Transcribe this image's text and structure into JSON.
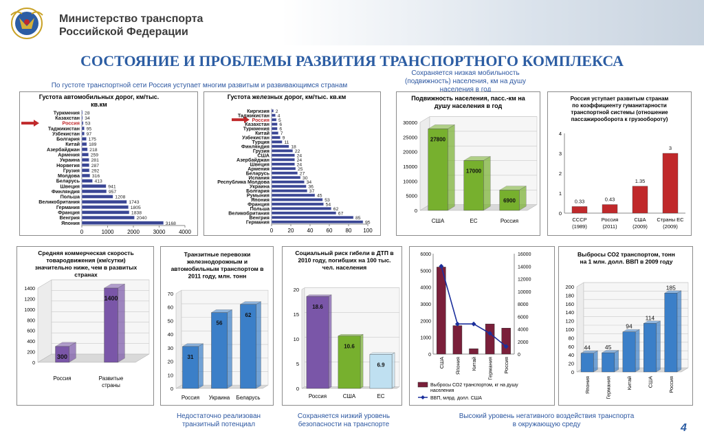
{
  "header": {
    "ministry_line1": "Министерство транспорта",
    "ministry_line2": "Российской Федерации",
    "title": "СОСТОЯНИЕ И ПРОБЛЕМЫ РАЗВИТИЯ ТРАНСПОРТНОГО КОМПЛЕКСА"
  },
  "notes": {
    "density": "По густоте транспортной сети Россия уступает многим развитым и развивающимся странам",
    "mobility": [
      "Сохраняется низкая мобильность",
      "(подвижность) населения, км на душу",
      "населения в год"
    ],
    "transit": [
      "Недостаточно реализован",
      "транзитный потенциал"
    ],
    "safety": [
      "Сохраняется низкий уровень",
      "безопасности на транспорте"
    ],
    "environment": [
      "Высокий уровень негативного воздействия транспорта",
      "в окружающую среду"
    ]
  },
  "page_number": "4",
  "colors": {
    "accent_blue": "#2c5da3",
    "bar_navy": "#3a4694",
    "bar_green": "#77b02e",
    "bar_red": "#c0292b",
    "bar_purple": "#7a56a8",
    "bar_blue": "#3b7fc8",
    "bar_maroon": "#7a1f3a",
    "bar_lightblue": "#bfe0f1"
  },
  "chart_data": [
    {
      "id": "roads",
      "type": "bar",
      "orientation": "horizontal",
      "title": "Густота автомобильных дорог, км/тыс. кв.км",
      "categories": [
        "Туркмения",
        "Казахстан",
        "Россия",
        "Таджикистан",
        "Узбекистан",
        "Болгария",
        "Китай",
        "Азербайджан",
        "Армения",
        "Украина",
        "Норвегия",
        "Грузия",
        "Молдова",
        "Беларусь",
        "Швеция",
        "Финляндия",
        "Польша",
        "Великобритания",
        "Германия",
        "Франция",
        "Венгрия",
        "Япония"
      ],
      "values": [
        28,
        34,
        53,
        95,
        97,
        175,
        189,
        218,
        259,
        281,
        287,
        292,
        316,
        413,
        941,
        957,
        1208,
        1743,
        1805,
        1838,
        2040,
        3168
      ],
      "highlight": "Россия",
      "xlim": [
        0,
        4000
      ],
      "xticks": [
        0,
        1000,
        2000,
        3000,
        4000
      ]
    },
    {
      "id": "rail",
      "type": "bar",
      "orientation": "horizontal",
      "title": "Густота железных дорог, км/тыс. кв.км",
      "categories": [
        "Киргизия",
        "Таджикистан",
        "Россия",
        "Казахстан",
        "Туркмения",
        "Китай",
        "Узбекистан",
        "Турция",
        "Финляндия",
        "Грузия",
        "США",
        "Азербайджан",
        "Швеция",
        "Армения",
        "Беларусь",
        "Испания",
        "Республика Молдова",
        "Украина",
        "Болгария",
        "Румыния",
        "Япония",
        "Франция",
        "Польша",
        "Великобритания",
        "Венгрия",
        "Германия"
      ],
      "values": [
        2,
        4,
        5,
        6,
        6,
        7,
        9,
        11,
        18,
        22,
        24,
        24,
        24,
        25,
        27,
        30,
        34,
        36,
        37,
        45,
        53,
        54,
        62,
        67,
        85,
        95
      ],
      "highlight": "Россия",
      "xlim": [
        0,
        100
      ],
      "xticks": [
        0,
        20,
        40,
        60,
        80,
        100
      ]
    },
    {
      "id": "mobility",
      "type": "bar",
      "title": "Подвижность населения, пасс.-км на душу населения в год",
      "categories": [
        "США",
        "ЕС",
        "Россия"
      ],
      "values": [
        27800,
        17000,
        6900
      ],
      "ylim": [
        0,
        30000
      ],
      "yticks": [
        0,
        5000,
        10000,
        15000,
        20000,
        25000,
        30000
      ]
    },
    {
      "id": "humanitarian",
      "type": "bar",
      "title": "Россия уступает развитым странам по коэффициенту гуманитарности транспортной системы (отношение пассажирооборота к грузообороту)",
      "categories": [
        "СССР (1989)",
        "Россия (2011)",
        "США (2009)",
        "Страны ЕС (2009)"
      ],
      "category_lines": [
        [
          "СССР",
          "(1989)"
        ],
        [
          "Россия",
          "(2011)"
        ],
        [
          "США",
          "(2009)"
        ],
        [
          "Страны ЕС",
          "(2009)"
        ]
      ],
      "values": [
        0.33,
        0.43,
        1.35,
        3
      ],
      "value_labels": [
        "0.33",
        "0.43",
        "1.35",
        "3"
      ],
      "ylim": [
        0,
        4
      ],
      "yticks": [
        0,
        1,
        2,
        3,
        4
      ]
    },
    {
      "id": "speed",
      "type": "bar",
      "title": "Средняя коммерческая скорость товародвижения (км/сутки) значительно ниже, чем в развитых странах",
      "categories": [
        "Россия",
        "Развитые страны"
      ],
      "category_lines": [
        [
          "Россия"
        ],
        [
          "Развитые",
          "страны"
        ]
      ],
      "values": [
        300,
        1400
      ],
      "ylim": [
        0,
        1400
      ],
      "yticks": [
        0,
        200,
        400,
        600,
        800,
        1000,
        1200,
        1400
      ]
    },
    {
      "id": "transit",
      "type": "bar",
      "title": "Транзитные перевозки железнодорожным и автомобильным транспортом в 2011 году, млн. тонн",
      "categories": [
        "Россия",
        "Украина",
        "Беларусь"
      ],
      "values": [
        31,
        56,
        62
      ],
      "ylim": [
        0,
        70
      ],
      "yticks": [
        0,
        10,
        20,
        30,
        40,
        50,
        60,
        70
      ]
    },
    {
      "id": "risk",
      "type": "bar",
      "title": "Социальный риск гибели в ДТП в 2010 году, погибших на 100 тыс. чел. населения",
      "categories": [
        "Россия",
        "США",
        "ЕС"
      ],
      "values": [
        18.6,
        10.6,
        6.9
      ],
      "ylim": [
        0,
        20
      ],
      "yticks": [
        0,
        5,
        10,
        15,
        20
      ]
    },
    {
      "id": "co2_gdp",
      "type": "bar+line",
      "categories": [
        "США",
        "Япония",
        "Китай",
        "Германия",
        "Россия"
      ],
      "series": [
        {
          "name": "Выбросы СО2 транспортом, кг на душу населения",
          "type": "bar",
          "axis": "left",
          "values": [
            5200,
            1700,
            320,
            1800,
            1550
          ]
        },
        {
          "name": "ВВП, млрд. долл. США",
          "type": "line",
          "axis": "right",
          "values": [
            14000,
            4800,
            4800,
            3300,
            1200
          ]
        }
      ],
      "ylim_left": [
        0,
        6000
      ],
      "yticks_left": [
        0,
        1000,
        2000,
        3000,
        4000,
        5000,
        6000
      ],
      "ylim_right": [
        0,
        16000
      ],
      "yticks_right": [
        0,
        2000,
        4000,
        6000,
        8000,
        10000,
        12000,
        14000,
        16000
      ],
      "legend": "bottom"
    },
    {
      "id": "co2",
      "type": "bar",
      "title": "Выбросы СО2 транспортом, тонн на 1 млн. долл. ВВП в 2009 году",
      "categories": [
        "Япония",
        "Германия",
        "Китай",
        "США",
        "Россия"
      ],
      "values": [
        44,
        45,
        94,
        114,
        185
      ],
      "ylim": [
        0,
        200
      ],
      "yticks": [
        0,
        20,
        40,
        60,
        80,
        100,
        120,
        140,
        160,
        180,
        200
      ]
    }
  ]
}
